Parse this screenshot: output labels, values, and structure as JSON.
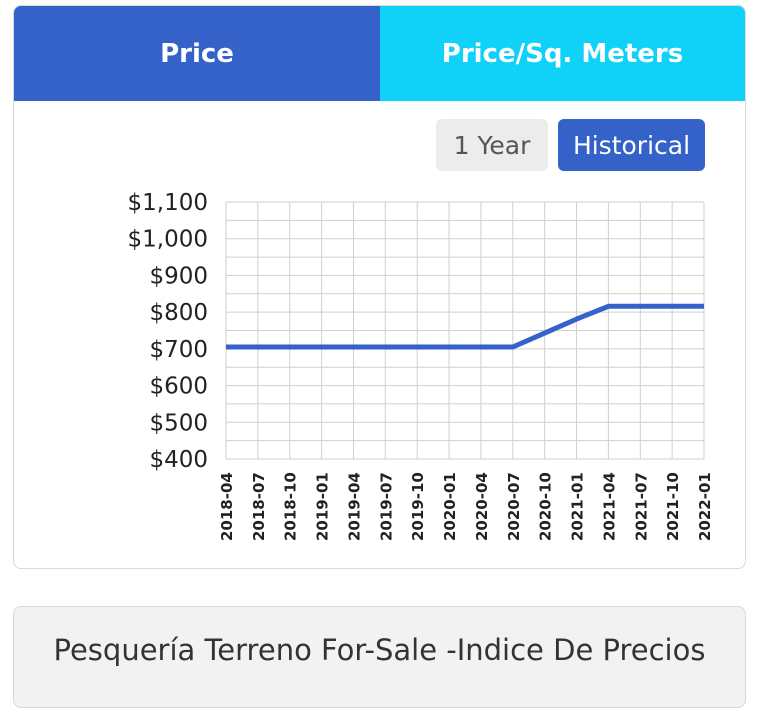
{
  "tabs": {
    "price_label": "Price",
    "price_per_sqm_label": "Price/Sq. Meters"
  },
  "range_toggle": {
    "one_year_label": "1 Year",
    "historical_label": "Historical",
    "selected": "Historical"
  },
  "colors": {
    "primary": "#3462c9",
    "accent": "#10d2f8",
    "line": "#3462c9"
  },
  "chart_data": {
    "type": "line",
    "x": [
      "2018-04",
      "2018-07",
      "2018-10",
      "2019-01",
      "2019-04",
      "2019-07",
      "2019-10",
      "2020-01",
      "2020-04",
      "2020-07",
      "2020-10",
      "2021-01",
      "2021-04",
      "2021-07",
      "2021-10",
      "2022-01"
    ],
    "series": [
      {
        "values": [
          705,
          705,
          705,
          705,
          705,
          705,
          705,
          705,
          705,
          705,
          743,
          781,
          816,
          816,
          816,
          816
        ]
      }
    ],
    "yticks": [
      "$400",
      "$500",
      "$600",
      "$700",
      "$800",
      "$900",
      "$1,000",
      "$1,100"
    ],
    "ylim": [
      400,
      1100
    ],
    "grid": true
  },
  "info_card": {
    "title": "Pesquería Terreno For-Sale -Indice De Precios"
  }
}
